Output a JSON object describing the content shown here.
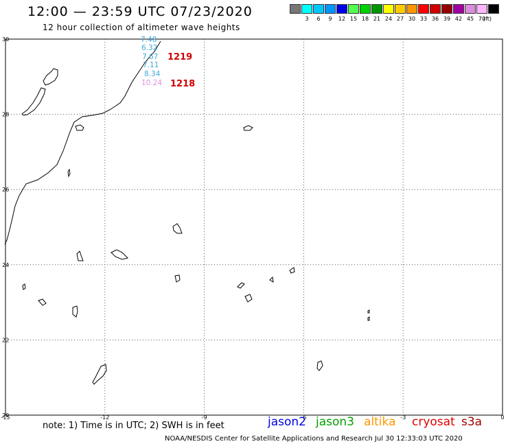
{
  "header": {
    "title": "12:00 — 23:59 UTC 07/23/2020",
    "subtitle": "12 hour collection of altimeter wave heights"
  },
  "legend": {
    "unit": "(ft)",
    "entries": [
      {
        "color": "#777777",
        "label": ""
      },
      {
        "color": "#00ffff",
        "label": "3"
      },
      {
        "color": "#00c8ff",
        "label": "6"
      },
      {
        "color": "#0096ff",
        "label": "9"
      },
      {
        "color": "#0000e6",
        "label": "12"
      },
      {
        "color": "#50ff50",
        "label": "15"
      },
      {
        "color": "#00d200",
        "label": "18"
      },
      {
        "color": "#009600",
        "label": "21"
      },
      {
        "color": "#ffff00",
        "label": "24"
      },
      {
        "color": "#ffcc00",
        "label": "27"
      },
      {
        "color": "#ff9600",
        "label": "30"
      },
      {
        "color": "#ff0000",
        "label": "33"
      },
      {
        "color": "#d20000",
        "label": "36"
      },
      {
        "color": "#960000",
        "label": "39"
      },
      {
        "color": "#a000a0",
        "label": "42"
      },
      {
        "color": "#dc8cdc",
        "label": "45"
      },
      {
        "color": "#ffb4ff",
        "label": "70"
      },
      {
        "color": "#000000",
        "label": ""
      }
    ]
  },
  "axes": {
    "lon_min": -15,
    "lon_max": 0,
    "lat_min": 20,
    "lat_max": 30,
    "x_ticks": [
      {
        "value": -15,
        "label": "-15"
      },
      {
        "value": -12,
        "label": "-12"
      },
      {
        "value": -9,
        "label": "-9"
      },
      {
        "value": -6,
        "label": "-6"
      },
      {
        "value": -3,
        "label": "-3"
      },
      {
        "value": 0,
        "label": "0"
      }
    ],
    "y_ticks": [
      {
        "value": 30,
        "label": "30"
      },
      {
        "value": 28,
        "label": "28"
      },
      {
        "value": 26,
        "label": "26"
      },
      {
        "value": 24,
        "label": "24"
      },
      {
        "value": 22,
        "label": "22"
      },
      {
        "value": 20,
        "label": "20"
      }
    ],
    "grid": "dotted"
  },
  "observations": [
    {
      "value": "7.48",
      "color": "#40a8d8"
    },
    {
      "value": "6.32",
      "color": "#40a8d8"
    },
    {
      "value": "7.67",
      "color": "#40a8d8"
    },
    {
      "value": "7.11",
      "color": "#40a8d8"
    },
    {
      "value": "8.34",
      "color": "#40a8d8"
    },
    {
      "value": "10.24",
      "color": "#e090e0"
    }
  ],
  "pass_labels": [
    {
      "label": "1219",
      "color": "#d00000"
    },
    {
      "label": "1218",
      "color": "#d00000"
    }
  ],
  "footer": {
    "note": "note:  1) Time is in UTC;  2) SWH is in feet",
    "satellites": [
      {
        "name": "jason2",
        "color": "#0000e0"
      },
      {
        "name": "jason3",
        "color": "#00a000"
      },
      {
        "name": "altika",
        "color": "#ff9600"
      },
      {
        "name": "cryosat",
        "color": "#e00000"
      },
      {
        "name": "s3a",
        "color": "#a00000"
      }
    ],
    "credit": "NOAA/NESDIS Center for Satellite Applications and Research    Jul 30 12:33:03 UTC 2020"
  }
}
